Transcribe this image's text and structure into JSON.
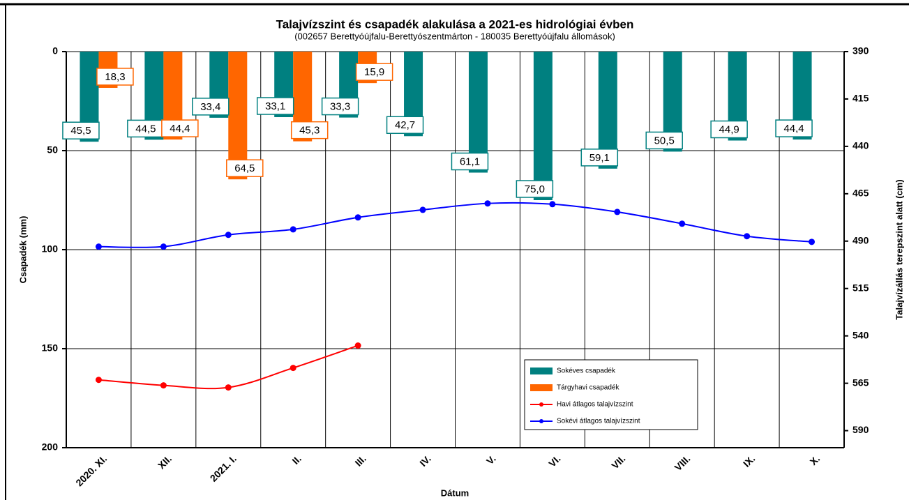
{
  "chart_data": {
    "type": "bar",
    "title": "Talajvízszint és csapadék alakulása a 2021-es hidrológiai évben",
    "subtitle": "(002657  Berettyóújfalu-Berettyószentmárton  - 180035  Berettyóújfalu  állomások)",
    "x_label": "Dátum",
    "y_label": "Csapadék (mm)",
    "y2_label": "Talajvízállás terepszint alatt (cm)",
    "categories": [
      "2020. XI.",
      "XII.",
      "2021. I.",
      "II.",
      "III.",
      "IV.",
      "V.",
      "VI.",
      "VII.",
      "VIII.",
      "IX.",
      "X."
    ],
    "ylim": [
      0,
      200
    ],
    "yticks": [
      0,
      50,
      100,
      150,
      200
    ],
    "y_inverted": true,
    "y2lim": [
      390,
      599
    ],
    "y2ticks": [
      390,
      415,
      440,
      465,
      490,
      515,
      540,
      565,
      590
    ],
    "grid": true,
    "series": [
      {
        "name": "Sokéves csapadék",
        "type": "bar",
        "color": "#008080",
        "values": [
          45.5,
          44.5,
          33.4,
          33.1,
          33.3,
          42.7,
          61.1,
          75.0,
          59.1,
          50.5,
          44.9,
          44.4
        ],
        "value_labels": [
          "45,5",
          "44,5",
          "33,4",
          "33,1",
          "33,3",
          "42,7",
          "61,1",
          "75,0",
          "59,1",
          "50,5",
          "44,9",
          "44,4"
        ]
      },
      {
        "name": "Tárgyhavi csapadék",
        "type": "bar",
        "color": "#ff6600",
        "values": [
          18.3,
          44.4,
          64.5,
          45.3,
          15.9,
          null,
          null,
          null,
          null,
          null,
          null,
          null
        ],
        "value_labels": [
          "18,3",
          "44,4",
          "64,5",
          "45,3",
          "15,9",
          null,
          null,
          null,
          null,
          null,
          null,
          null
        ]
      },
      {
        "name": "Havi átlagos talajvízszint",
        "type": "line",
        "axis": "y2",
        "color": "#ff0000",
        "values": [
          563.2,
          566.1,
          567.2,
          556.9,
          545.1,
          null,
          null,
          null,
          null,
          null,
          null,
          null
        ]
      },
      {
        "name": "Sokévi átlagos talajvízszint",
        "type": "line",
        "axis": "y2",
        "color": "#0000ff",
        "values": [
          492.9,
          492.9,
          486.7,
          483.8,
          477.5,
          473.5,
          470.1,
          470.5,
          474.6,
          480.8,
          487.4,
          490.4
        ]
      }
    ]
  }
}
